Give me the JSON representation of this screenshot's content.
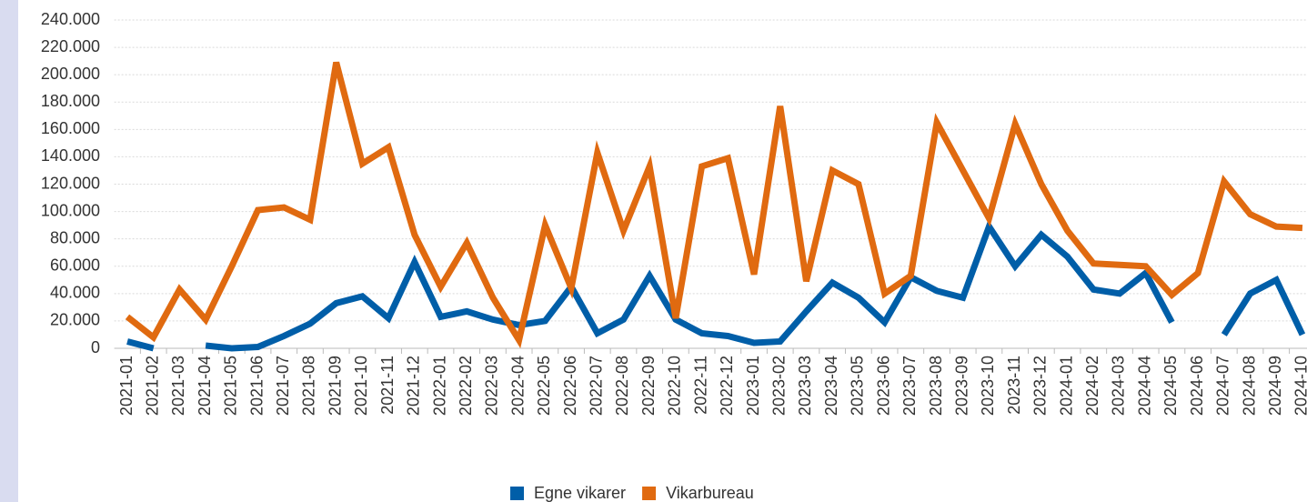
{
  "chart_data": {
    "type": "line",
    "categories": [
      "2021-01",
      "2021-02",
      "2021-03",
      "2021-04",
      "2021-05",
      "2021-06",
      "2021-07",
      "2021-08",
      "2021-09",
      "2021-10",
      "2021-11",
      "2021-12",
      "2022-01",
      "2022-02",
      "2022-03",
      "2022-04",
      "2022-05",
      "2022-06",
      "2022-07",
      "2022-08",
      "2022-09",
      "2022-10",
      "2022-11",
      "2022-12",
      "2023-01",
      "2023-02",
      "2023-03",
      "2023-04",
      "2023-05",
      "2023-06",
      "2023-07",
      "2023-08",
      "2023-09",
      "2023-10",
      "2023-11",
      "2023-12",
      "2024-01",
      "2024-02",
      "2024-03",
      "2024-04",
      "2024-05",
      "2024-06",
      "2024-07",
      "2024-08",
      "2024-09",
      "2024-10"
    ],
    "series": [
      {
        "name": "Egne vikarer",
        "color": "#005ea8",
        "values": [
          5000,
          0,
          null,
          2000,
          0,
          1000,
          9000,
          18000,
          33000,
          38000,
          22000,
          63000,
          23000,
          27000,
          21000,
          17000,
          20000,
          45000,
          11000,
          21000,
          53000,
          21000,
          11000,
          9000,
          4000,
          5000,
          27000,
          48000,
          37000,
          19000,
          52000,
          42000,
          37000,
          89000,
          60000,
          83000,
          67000,
          43000,
          40000,
          55000,
          19000,
          null,
          10000,
          40000,
          50000,
          10000
        ]
      },
      {
        "name": "Vikarbureau",
        "color": "#e06a10",
        "values": [
          23000,
          8000,
          43000,
          21000,
          60000,
          101000,
          103000,
          94000,
          209000,
          135000,
          147000,
          83000,
          45000,
          77000,
          37000,
          6000,
          90000,
          44000,
          143000,
          86000,
          133000,
          22000,
          133000,
          139000,
          54000,
          177000,
          49000,
          130000,
          120000,
          40000,
          53000,
          165000,
          130000,
          95000,
          164000,
          120000,
          86000,
          62000,
          61000,
          60000,
          39000,
          55000,
          122000,
          98000,
          89000,
          88000
        ]
      }
    ],
    "ylim": [
      0,
      240000
    ],
    "yticks": [
      0,
      {
        "value": 20000,
        "label": "20.000"
      },
      {
        "value": 40000,
        "label": "40.000"
      },
      {
        "value": 60000,
        "label": "60.000"
      },
      {
        "value": 80000,
        "label": "80.000"
      },
      {
        "value": 100000,
        "label": "100.000"
      },
      {
        "value": 120000,
        "label": "120.000"
      },
      {
        "value": 140000,
        "label": "140.000"
      },
      {
        "value": 160000,
        "label": "160.000"
      },
      {
        "value": 180000,
        "label": "180.000"
      },
      {
        "value": 200000,
        "label": "200.000"
      },
      {
        "value": 220000,
        "label": "220.000"
      },
      {
        "value": 240000,
        "label": "240.000"
      }
    ],
    "grid": true,
    "legend": "bottom"
  }
}
